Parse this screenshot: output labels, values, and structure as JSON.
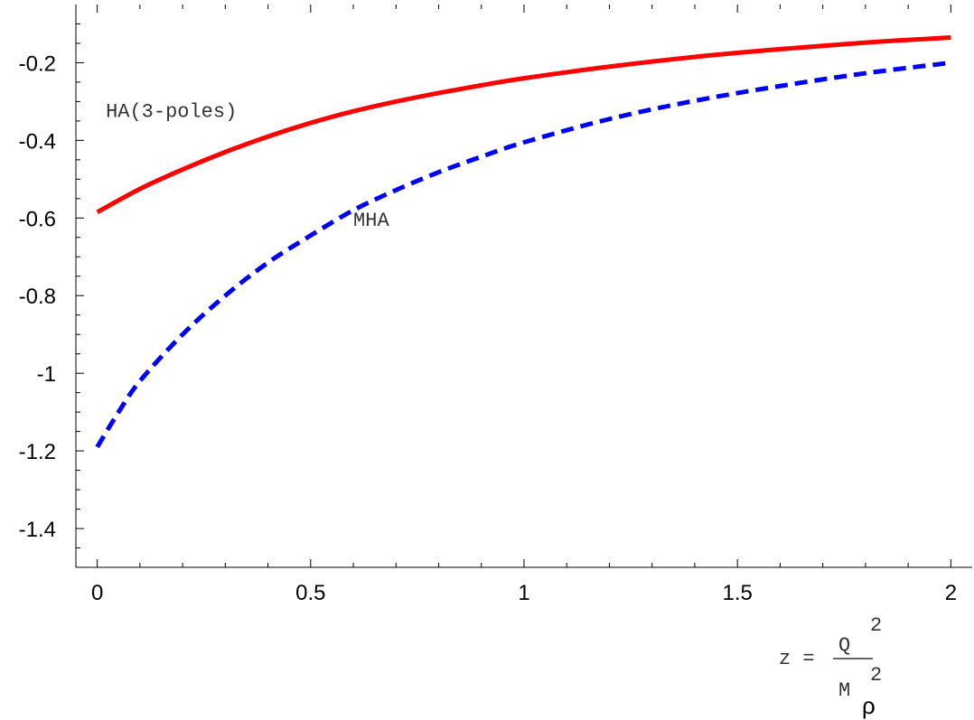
{
  "chart_data": {
    "type": "line",
    "xlim": [
      -0.05,
      2.05
    ],
    "ylim": [
      -1.5,
      -0.05
    ],
    "x_ticks": [
      {
        "value": 0,
        "label": "0"
      },
      {
        "value": 0.5,
        "label": "0.5"
      },
      {
        "value": 1,
        "label": "1"
      },
      {
        "value": 1.5,
        "label": "1.5"
      },
      {
        "value": 2,
        "label": "2"
      }
    ],
    "y_ticks": [
      {
        "value": -0.2,
        "label": "-0.2"
      },
      {
        "value": -0.4,
        "label": "-0.4"
      },
      {
        "value": -0.6,
        "label": "-0.6"
      },
      {
        "value": -0.8,
        "label": "-0.8"
      },
      {
        "value": -1.0,
        "label": "-1"
      },
      {
        "value": -1.2,
        "label": "-1.2"
      },
      {
        "value": -1.4,
        "label": "-1.4"
      }
    ],
    "grid": false,
    "series": [
      {
        "name": "HA(3-poles)",
        "color": "#ff0000",
        "style": "solid",
        "x": [
          0,
          0.1,
          0.2,
          0.3,
          0.4,
          0.5,
          0.6,
          0.7,
          0.8,
          0.9,
          1.0,
          1.2,
          1.4,
          1.6,
          1.8,
          2.0
        ],
        "y": [
          -0.585,
          -0.525,
          -0.475,
          -0.43,
          -0.39,
          -0.355,
          -0.325,
          -0.3,
          -0.278,
          -0.258,
          -0.24,
          -0.21,
          -0.185,
          -0.165,
          -0.148,
          -0.135
        ]
      },
      {
        "name": "MHA",
        "color": "#0000ff",
        "style": "dashed",
        "x": [
          0,
          0.05,
          0.1,
          0.2,
          0.3,
          0.4,
          0.5,
          0.6,
          0.7,
          0.8,
          0.9,
          1.0,
          1.2,
          1.4,
          1.6,
          1.8,
          2.0
        ],
        "y": [
          -1.19,
          -1.1,
          -1.02,
          -0.9,
          -0.8,
          -0.715,
          -0.645,
          -0.58,
          -0.528,
          -0.482,
          -0.442,
          -0.405,
          -0.345,
          -0.298,
          -0.26,
          -0.227,
          -0.2
        ]
      }
    ],
    "annotations": [
      {
        "text": "HA(3-poles)",
        "x": 0.02,
        "y": -0.34
      },
      {
        "text": "MHA",
        "x": 0.6,
        "y": -0.62
      }
    ],
    "xlabel": {
      "lhs": "z =",
      "numerator": "Q",
      "numerator_exp": "2",
      "denominator": "M",
      "denominator_exp": "2",
      "denominator_sub": "ρ"
    }
  }
}
